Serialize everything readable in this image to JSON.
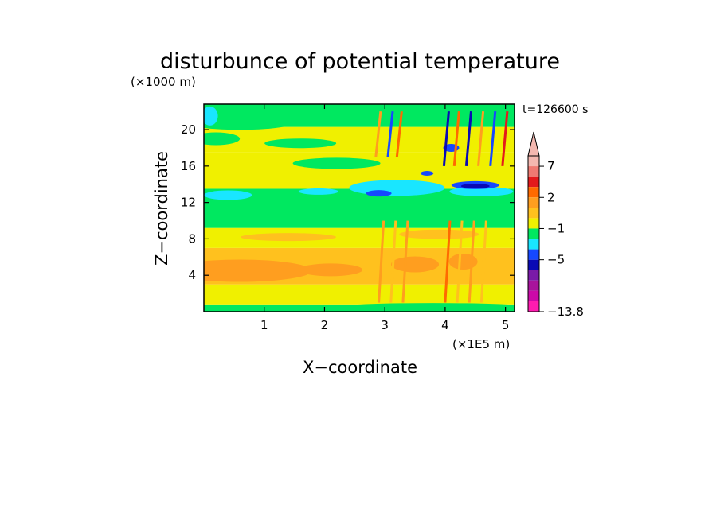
{
  "chart_data": {
    "type": "heatmap",
    "title": "disturbunce of potential temperature",
    "y_unit": "(×1000 m)",
    "x_unit": "(×1E5 m)",
    "xlabel": "X−coordinate",
    "ylabel": "Z−coordinate",
    "time_label": "t=126600 s",
    "xlim": [
      0,
      5.15
    ],
    "ylim": [
      0,
      22.8
    ],
    "x_ticks": [
      1,
      2,
      3,
      4,
      5
    ],
    "x_tick_labels": [
      "1",
      "2",
      "3",
      "4",
      "5"
    ],
    "y_ticks": [
      4,
      8,
      12,
      16,
      20
    ],
    "y_tick_labels": [
      "4",
      "8",
      "12",
      "16",
      "20"
    ],
    "colorbar": {
      "levels_top_to_bottom": [
        {
          "color": "#f4b8b0"
        },
        {
          "color": "#ef7a72"
        },
        {
          "color": "#e31a1c"
        },
        {
          "color": "#ff6a00"
        },
        {
          "color": "#ff9e1f"
        },
        {
          "color": "#ffc11e"
        },
        {
          "color": "#f0f000"
        },
        {
          "color": "#00e860"
        },
        {
          "color": "#19e6ff"
        },
        {
          "color": "#1648ff"
        },
        {
          "color": "#0a0ab4"
        },
        {
          "color": "#7a1aa8"
        },
        {
          "color": "#a8139c"
        },
        {
          "color": "#cc0aa8"
        },
        {
          "color": "#ff1cb0"
        }
      ],
      "tick_labels": [
        {
          "text": "7",
          "level_index": 1
        },
        {
          "text": "2",
          "level_index": 4
        },
        {
          "text": "−1",
          "level_index": 7
        },
        {
          "text": "−5",
          "level_index": 10
        },
        {
          "text": "−13.8",
          "level_index": 15
        }
      ],
      "max_arrow_color": "#f4b8b0"
    },
    "bands": [
      {
        "y0": 0.0,
        "y1": 0.8,
        "color": "#00e860"
      },
      {
        "y0": 0.8,
        "y1": 3.0,
        "color": "#f0f000"
      },
      {
        "y0": 3.0,
        "y1": 7.0,
        "color": "#ffc11e"
      },
      {
        "y0": 7.0,
        "y1": 9.2,
        "color": "#f0f000"
      },
      {
        "y0": 9.2,
        "y1": 13.5,
        "color": "#00e860"
      },
      {
        "y0": 13.5,
        "y1": 17.5,
        "color": "#f0f000"
      },
      {
        "y0": 17.5,
        "y1": 20.3,
        "color": "#f0f000"
      },
      {
        "y0": 20.3,
        "y1": 22.8,
        "color": "#00e860"
      }
    ]
  }
}
